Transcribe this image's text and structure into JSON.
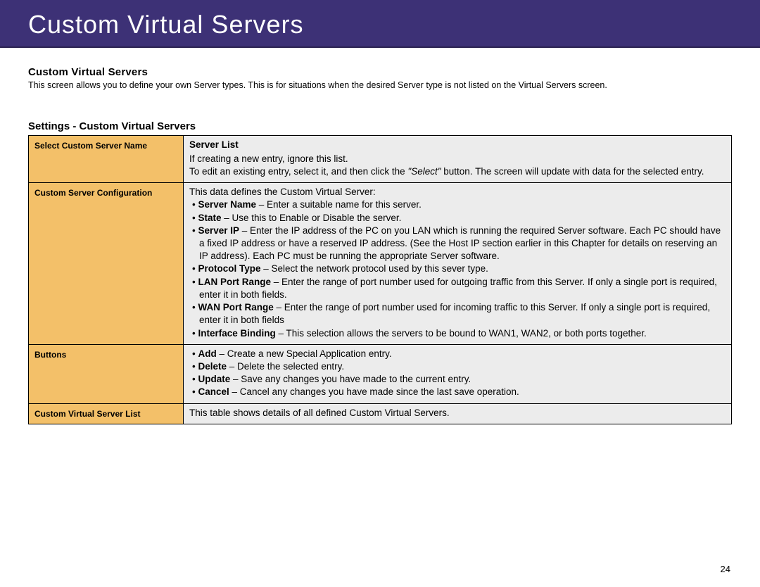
{
  "colors": {
    "banner_bg": "#3d3176",
    "banner_text": "#ffffff",
    "label_cell_bg": "#f3c069",
    "desc_cell_bg": "#ececec",
    "border": "#000000",
    "body_text": "#000000"
  },
  "typography": {
    "banner_fontsize_pt": 27,
    "section_title_fontsize_pt": 11,
    "body_fontsize_pt": 10,
    "table_fontsize_pt": 10
  },
  "banner": {
    "title": "Custom Virtual Servers"
  },
  "section": {
    "title": "Custom Virtual Servers",
    "intro": "This screen allows you to define your own Server types. This is for situations when the desired Server type is not listed on the Virtual Servers screen."
  },
  "table": {
    "title": "Settings - Custom Virtual Servers",
    "rows": {
      "server_list": {
        "label": "Select Custom Server Name",
        "heading": "Server List",
        "line1": "If creating a new entry, ignore this list.",
        "line2_pre": "To edit an existing entry, select it, and then click the ",
        "line2_em": "\"Select\"",
        "line2_post": " button. The screen will update with data for the selected entry."
      },
      "config": {
        "label": "Custom Server Configuration",
        "intro": "This data defines the Custom Virtual Server:",
        "items": [
          {
            "term": "Server Name",
            "desc": " – Enter a suitable name for this server."
          },
          {
            "term": "State",
            "desc": " – Use this to Enable or Disable the server."
          },
          {
            "term": "Server IP",
            "desc": " – Enter the IP address of the PC on you LAN which is running the required Server software. Each PC should have a fixed IP address or have a reserved IP address. (See the Host IP section earlier in this Chapter for details on reserving an IP address). Each PC must be running the appropriate Server software."
          },
          {
            "term": "Protocol Type",
            "desc": " – Select the network protocol used by this sever type."
          },
          {
            "term": "LAN Port Range",
            "desc": " – Enter the range of port number used for outgoing traffic from this Server. If only a single port is required, enter it in both fields."
          },
          {
            "term": "WAN Port Range",
            "desc": " – Enter the range of port number used for incoming traffic to this Server. If only a single port is required, enter it in both fields"
          },
          {
            "term": "Interface Binding",
            "desc": " – This selection allows the servers to be bound to WAN1, WAN2, or both ports together."
          }
        ]
      },
      "buttons": {
        "label": "Buttons",
        "items": [
          {
            "term": "Add",
            "desc": " – Create a new Special Application entry."
          },
          {
            "term": "Delete",
            "desc": " – Delete the selected entry."
          },
          {
            "term": "Update",
            "desc": " – Save any changes you have made to the current entry."
          },
          {
            "term": "Cancel",
            "desc": " – Cancel any changes you have made since the last save operation."
          }
        ]
      },
      "list": {
        "label": "Custom Virtual Server List",
        "desc": "This table shows details of all defined Custom Virtual Servers."
      }
    }
  },
  "page_number": "24"
}
